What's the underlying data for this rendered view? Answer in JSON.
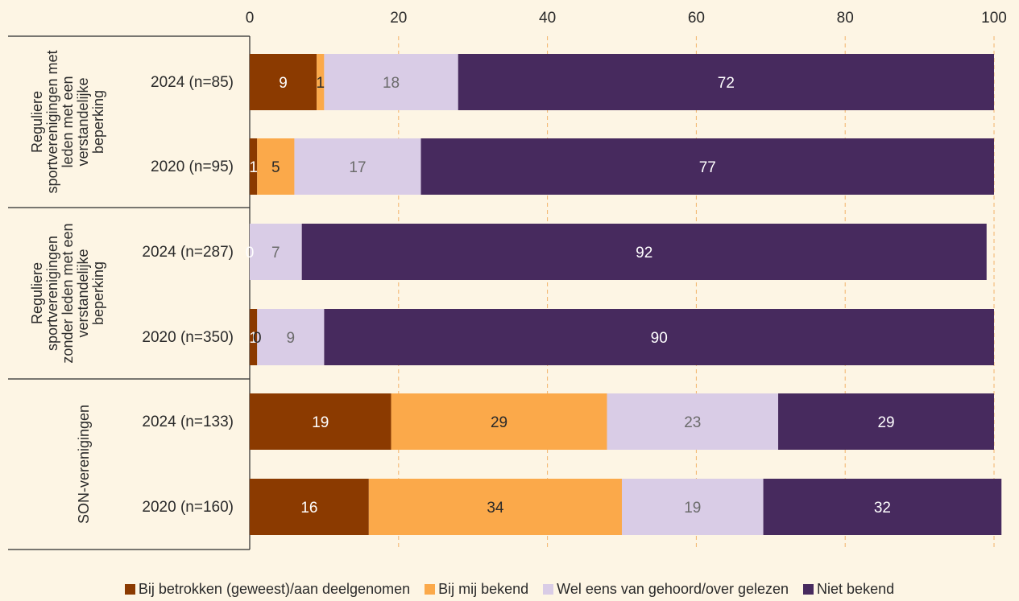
{
  "chart_data": {
    "type": "bar",
    "orientation": "horizontal",
    "stacked": true,
    "xlim": [
      0,
      100
    ],
    "x_ticks": [
      "0",
      "20",
      "40",
      "60",
      "80",
      "100"
    ],
    "grid": "vertical dashed",
    "legend_position": "bottom",
    "groups": [
      {
        "label": "Reguliere sportverenigingen met leden met een verstandelijke beperking",
        "label_lines": [
          "Reguliere",
          "sportverenigingen met",
          "leden met een",
          "verstandelijke",
          "beperking"
        ]
      },
      {
        "label": "Reguliere sportverenigingen zonder leden met een verstandelijke beperking",
        "label_lines": [
          "Reguliere",
          "sportverenigingen",
          "zonder leden met een",
          "verstandelijke",
          "beperking"
        ]
      },
      {
        "label": "SON-verenigingen",
        "label_lines": [
          "SON-verenigingen"
        ]
      }
    ],
    "categories": [
      "2024 (n=85)",
      "2020 (n=95)",
      "2024 (n=287)",
      "2020 (n=350)",
      "2024 (n=133)",
      "2020 (n=160)"
    ],
    "category_group": [
      0,
      0,
      1,
      1,
      2,
      2
    ],
    "series": [
      {
        "name": "Bij betrokken (geweest)/aan deelgenomen",
        "color": "#8B3A00",
        "label_color": "#ffffff",
        "values": [
          9,
          1,
          0,
          1,
          19,
          16
        ],
        "labels": [
          "9",
          "1",
          "0",
          "1",
          "19",
          "16"
        ]
      },
      {
        "name": "Bij mij bekend",
        "color": "#FBA94A",
        "label_color": "#2a2a2a",
        "values": [
          1,
          5,
          0,
          0,
          29,
          34
        ],
        "labels": [
          "1",
          "5",
          "",
          "0",
          "29",
          "34"
        ]
      },
      {
        "name": "Wel eens van gehoord/over gelezen",
        "color": "#D9CCE6",
        "label_color": "#6b6b6b",
        "values": [
          18,
          17,
          7,
          9,
          23,
          19
        ],
        "labels": [
          "18",
          "17",
          "7",
          "9",
          "23",
          "19"
        ]
      },
      {
        "name": "Niet bekend",
        "color": "#472A5E",
        "label_color": "#ffffff",
        "values": [
          72,
          77,
          92,
          90,
          29,
          32
        ],
        "labels": [
          "72",
          "77",
          "92",
          "90",
          "29",
          "32"
        ]
      }
    ]
  }
}
